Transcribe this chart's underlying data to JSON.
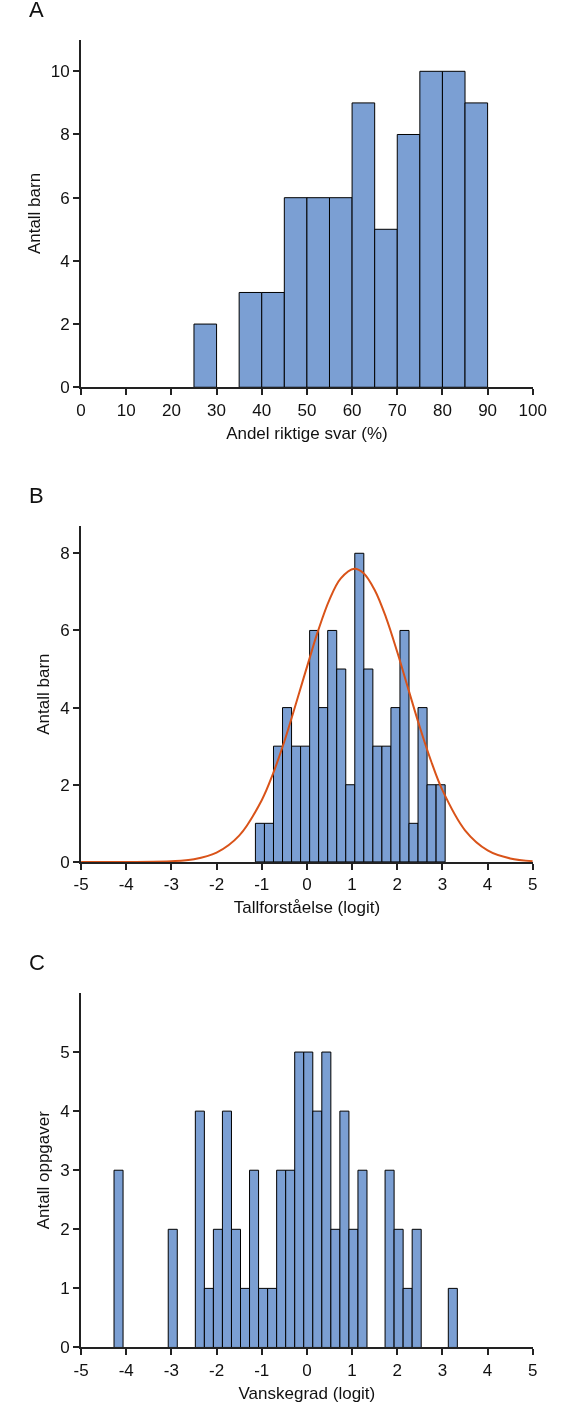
{
  "chart_data": [
    {
      "type": "histogram",
      "title": "A",
      "xlabel": "Andel riktige svar (%)",
      "ylabel": "Antall barn",
      "color": "#7b9fd3",
      "bins": [
        25,
        30,
        35,
        40,
        45,
        50,
        55,
        60,
        65,
        70,
        75,
        80,
        85,
        90
      ],
      "values": [
        2,
        0,
        3,
        3,
        6,
        6,
        6,
        9,
        5,
        8,
        10,
        10,
        9
      ],
      "xlim": [
        0,
        100
      ],
      "xticks": [
        0,
        10,
        20,
        30,
        40,
        50,
        60,
        70,
        80,
        90,
        100
      ],
      "ylim": [
        0,
        11
      ],
      "yticks": [
        0,
        2,
        4,
        6,
        8,
        10
      ]
    },
    {
      "type": "histogram",
      "title": "B",
      "xlabel": "Tallforståelse (logit)",
      "ylabel": "Antall barn",
      "color": "#7b9fd3",
      "bins": [
        -1.14,
        -0.94,
        -0.74,
        -0.54,
        -0.34,
        -0.14,
        0.06,
        0.26,
        0.46,
        0.66,
        0.86,
        1.06,
        1.26,
        1.46,
        1.66,
        1.86,
        2.06,
        2.26,
        2.46,
        2.66,
        2.86,
        3.06
      ],
      "values": [
        1,
        1,
        3,
        4,
        3,
        3,
        6,
        4,
        6,
        5,
        2,
        8,
        5,
        3,
        3,
        4,
        6,
        1,
        4,
        2,
        2
      ],
      "series": [
        {
          "type": "line",
          "color": "#d95319",
          "x": [
            -5,
            -3,
            -2.5,
            -2,
            -1.5,
            -1,
            -0.75,
            -0.5,
            0,
            0.25,
            0.5,
            0.75,
            1.05,
            1.25,
            1.5,
            1.75,
            2,
            2.25,
            2.5,
            2.75,
            3,
            3.5,
            4,
            4.5,
            5
          ],
          "values": [
            0,
            0.02,
            0.07,
            0.24,
            0.68,
            1.6,
            2.29,
            3.12,
            5.05,
            6.0,
            6.8,
            7.35,
            7.6,
            7.49,
            7.05,
            6.34,
            5.44,
            4.46,
            3.49,
            2.61,
            1.86,
            0.82,
            0.3,
            0.09,
            0.02
          ]
        }
      ],
      "xlim": [
        -5,
        5
      ],
      "xticks": [
        -5,
        -4,
        -3,
        -2,
        -1,
        0,
        1,
        2,
        3,
        4,
        5
      ],
      "ylim": [
        0,
        8.7
      ],
      "yticks": [
        0,
        2,
        4,
        6,
        8
      ]
    },
    {
      "type": "histogram",
      "title": "C",
      "xlabel": "Vanskegrad (logit)",
      "ylabel": "Antall oppgaver",
      "color": "#7b9fd3",
      "bins": [
        -4.27,
        -4.07,
        -3.87,
        -3.67,
        -3.47,
        -3.27,
        -3.07,
        -2.87,
        -2.67,
        -2.47,
        -2.27,
        -2.07,
        -1.87,
        -1.67,
        -1.47,
        -1.27,
        -1.07,
        -0.87,
        -0.67,
        -0.47,
        -0.27,
        -0.07,
        0.13,
        0.33,
        0.53,
        0.73,
        0.93,
        1.13,
        1.33,
        1.53,
        1.73,
        1.93,
        2.13,
        2.33,
        2.53,
        2.73,
        2.93,
        3.13,
        3.33
      ],
      "values": [
        3,
        0,
        0,
        0,
        0,
        0,
        2,
        0,
        0,
        4,
        1,
        2,
        4,
        2,
        1,
        3,
        1,
        1,
        3,
        3,
        5,
        5,
        4,
        5,
        2,
        4,
        2,
        3,
        0,
        0,
        3,
        2,
        1,
        2,
        0,
        0,
        0,
        1
      ],
      "xlim": [
        -5,
        5
      ],
      "xticks": [
        -5,
        -4,
        -3,
        -2,
        -1,
        0,
        1,
        2,
        3,
        4,
        5
      ],
      "ylim": [
        0,
        6
      ],
      "yticks": [
        0,
        1,
        2,
        3,
        4,
        5
      ]
    }
  ]
}
